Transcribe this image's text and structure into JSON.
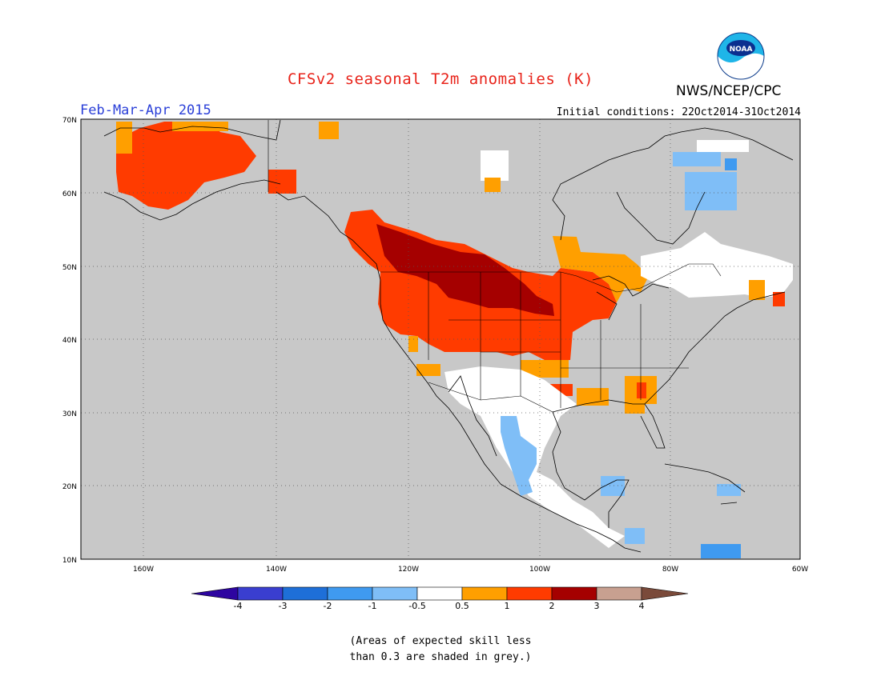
{
  "header": {
    "title": "CFSv2 seasonal T2m anomalies (K)",
    "period": "Feb-Mar-Apr 2015",
    "initial_conditions": "Initial conditions: 22Oct2014-31Oct2014",
    "agency": "NWS/NCEP/CPC",
    "logo_text": "NOAA"
  },
  "map": {
    "region": "North America",
    "lat_labels": [
      "70N",
      "60N",
      "50N",
      "40N",
      "30N",
      "20N",
      "10N"
    ],
    "lon_labels": [
      "160W",
      "140W",
      "120W",
      "100W",
      "80W",
      "60W"
    ],
    "background_color": "#c8c8c8",
    "coastline_color": "#000000"
  },
  "legend": {
    "tick_labels": [
      "-4",
      "-3",
      "-2",
      "-1",
      "-0.5",
      "0.5",
      "1",
      "2",
      "3",
      "4"
    ],
    "colors": [
      "#2d05a0",
      "#3a3ed0",
      "#1e6fd8",
      "#3f9af0",
      "#7fbef7",
      "#ffffff",
      "#ff9f00",
      "#ff3b00",
      "#a50000",
      "#c8a090",
      "#7a4a3a"
    ]
  },
  "note": {
    "line1": "(Areas of expected skill less",
    "line2": "than 0.3 are shaded in grey.)"
  }
}
